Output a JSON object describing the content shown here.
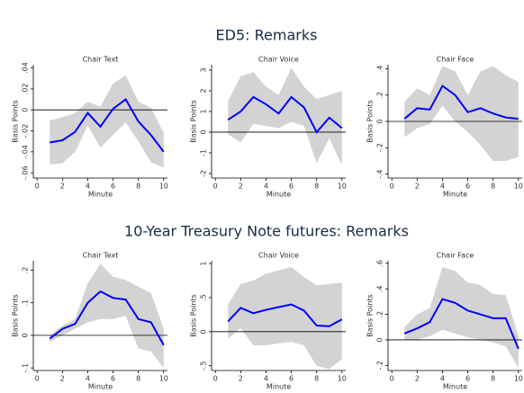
{
  "section_titles": [
    "ED5: Remarks",
    "10-Year Treasury Note futures: Remarks"
  ],
  "chart_data": [
    {
      "type": "line",
      "title": "Chair Text",
      "xlabel": "Minute",
      "ylabel": "Basis Points",
      "x": [
        1,
        2,
        3,
        4,
        5,
        6,
        7,
        8,
        9,
        10
      ],
      "values": [
        -0.031,
        -0.029,
        -0.021,
        -0.003,
        -0.016,
        0.001,
        0.01,
        -0.011,
        -0.024,
        -0.04
      ],
      "ci_upper": [
        -0.01,
        -0.007,
        -0.003,
        0.008,
        0.003,
        0.025,
        0.033,
        0.008,
        0.002,
        -0.022
      ],
      "ci_lower": [
        -0.052,
        -0.051,
        -0.04,
        -0.015,
        -0.036,
        -0.024,
        -0.012,
        -0.03,
        -0.05,
        -0.055
      ],
      "color": "#0000ff",
      "band_color": "#d3d3d3",
      "hline": 0,
      "xlim": [
        -0.3,
        10.3
      ],
      "xticks": [
        0,
        2,
        4,
        6,
        8,
        10
      ],
      "ylim": [
        -0.065,
        0.043
      ],
      "yticks": [
        {
          "value": -0.06,
          "label": "-.06"
        },
        {
          "value": -0.04,
          "label": "-.04"
        },
        {
          "value": -0.02,
          "label": "-.02"
        },
        0,
        {
          "value": 0.02,
          "label": ".02"
        },
        {
          "value": 0.04,
          "label": ".04"
        }
      ]
    },
    {
      "type": "line",
      "title": "Chair Voice",
      "xlabel": "Minute",
      "ylabel": "Basis Points",
      "x": [
        1,
        2,
        3,
        4,
        5,
        6,
        7,
        8,
        9,
        10
      ],
      "values": [
        0.6,
        1.0,
        1.7,
        1.35,
        0.9,
        1.7,
        1.2,
        0.0,
        0.7,
        0.2
      ],
      "ci_upper": [
        1.5,
        2.7,
        2.9,
        2.2,
        1.8,
        3.1,
        2.2,
        1.6,
        1.8,
        2.0
      ],
      "ci_lower": [
        -0.1,
        -0.5,
        0.4,
        0.3,
        0.2,
        0.5,
        0.3,
        -1.5,
        -0.3,
        -1.6
      ],
      "color": "#0000ff",
      "band_color": "#d3d3d3",
      "hline": 0,
      "xlim": [
        -0.3,
        10.3
      ],
      "xticks": [
        0,
        2,
        4,
        6,
        8,
        10
      ],
      "ylim": [
        -2.22,
        3.26
      ],
      "yticks": [
        -2,
        -1,
        0,
        1,
        2,
        3
      ]
    },
    {
      "type": "line",
      "title": "Chair Face",
      "xlabel": "Minute",
      "ylabel": "Basis Points",
      "x": [
        1,
        2,
        3,
        4,
        5,
        6,
        7,
        8,
        9,
        10
      ],
      "values": [
        0.02,
        0.1,
        0.09,
        0.27,
        0.2,
        0.07,
        0.1,
        0.06,
        0.03,
        0.02
      ],
      "ci_upper": [
        0.15,
        0.25,
        0.2,
        0.42,
        0.38,
        0.2,
        0.38,
        0.42,
        0.35,
        0.3
      ],
      "ci_lower": [
        -0.12,
        -0.05,
        -0.02,
        0.12,
        0.0,
        -0.08,
        -0.18,
        -0.3,
        -0.3,
        -0.27
      ],
      "color": "#0000ff",
      "band_color": "#d3d3d3",
      "hline": 0,
      "xlim": [
        -0.3,
        10.3
      ],
      "xticks": [
        0,
        2,
        4,
        6,
        8,
        10
      ],
      "ylim": [
        -0.43,
        0.43
      ],
      "yticks": [
        {
          "value": -0.4,
          "label": "-.4"
        },
        {
          "value": -0.2,
          "label": "-.2"
        },
        0,
        {
          "value": 0.2,
          "label": ".2"
        },
        {
          "value": 0.4,
          "label": ".4"
        }
      ]
    },
    {
      "type": "line",
      "title": "Chair Text",
      "xlabel": "Minute",
      "ylabel": "Basis Points",
      "x": [
        1,
        2,
        3,
        4,
        5,
        6,
        7,
        8,
        9,
        10
      ],
      "values": [
        -0.01,
        0.02,
        0.035,
        0.1,
        0.135,
        0.115,
        0.11,
        0.05,
        0.04,
        -0.03
      ],
      "ci_upper": [
        0,
        0.03,
        0.05,
        0.16,
        0.22,
        0.18,
        0.17,
        0.15,
        0.13,
        0.02
      ],
      "ci_lower": [
        -0.02,
        0.0,
        0.02,
        0.04,
        0.05,
        0.05,
        0.06,
        -0.04,
        -0.05,
        -0.1
      ],
      "color": "#0000ff",
      "band_color": "#d3d3d3",
      "hline": 0,
      "xlim": [
        -0.3,
        10.3
      ],
      "xticks": [
        0,
        2,
        4,
        6,
        8,
        10
      ],
      "ylim": [
        -0.108,
        0.229
      ],
      "yticks": [
        {
          "value": -0.1,
          "label": "-.1"
        },
        0,
        {
          "value": 0.1,
          "label": ".1"
        },
        {
          "value": 0.2,
          "label": ".2"
        }
      ]
    },
    {
      "type": "line",
      "title": "Chair Voice",
      "xlabel": "Minute",
      "ylabel": "Basis Points",
      "x": [
        1,
        2,
        3,
        4,
        5,
        6,
        7,
        8,
        9,
        10
      ],
      "values": [
        0.15,
        0.35,
        0.27,
        0.32,
        0.36,
        0.4,
        0.31,
        0.09,
        0.08,
        0.18
      ],
      "ci_upper": [
        0.4,
        0.7,
        0.75,
        0.85,
        0.9,
        0.95,
        0.8,
        0.68,
        0.7,
        0.72
      ],
      "ci_lower": [
        -0.1,
        0.05,
        -0.2,
        -0.2,
        -0.17,
        -0.15,
        -0.2,
        -0.5,
        -0.55,
        -0.4
      ],
      "color": "#0000ff",
      "band_color": "#d3d3d3",
      "hline": 0,
      "xlim": [
        -0.3,
        10.3
      ],
      "xticks": [
        0,
        2,
        4,
        6,
        8,
        10
      ],
      "ylim": [
        -0.57,
        1.04
      ],
      "yticks": [
        {
          "value": -0.5,
          "label": "-.5"
        },
        0,
        {
          "value": 0.5,
          "label": ".5"
        },
        1
      ]
    },
    {
      "type": "line",
      "title": "Chair Face",
      "xlabel": "Minute",
      "ylabel": "Basis Points",
      "x": [
        1,
        2,
        3,
        4,
        5,
        6,
        7,
        8,
        9,
        10
      ],
      "values": [
        0.05,
        0.09,
        0.14,
        0.32,
        0.29,
        0.23,
        0.2,
        0.17,
        0.17,
        -0.07
      ],
      "ci_upper": [
        0.1,
        0.2,
        0.25,
        0.57,
        0.54,
        0.45,
        0.43,
        0.36,
        0.35,
        0.03
      ],
      "ci_lower": [
        0.0,
        0.0,
        0.03,
        0.08,
        0.05,
        0.02,
        0.0,
        -0.02,
        -0.05,
        -0.22
      ],
      "color": "#0000ff",
      "band_color": "#d3d3d3",
      "hline": 0,
      "xlim": [
        -0.3,
        10.3
      ],
      "xticks": [
        0,
        2,
        4,
        6,
        8,
        10
      ],
      "ylim": [
        -0.24,
        0.62
      ],
      "yticks": [
        {
          "value": -0.2,
          "label": "-.2"
        },
        0,
        {
          "value": 0.2,
          "label": ".2"
        },
        {
          "value": 0.4,
          "label": ".4"
        },
        {
          "value": 0.6,
          "label": ".6"
        }
      ]
    }
  ]
}
